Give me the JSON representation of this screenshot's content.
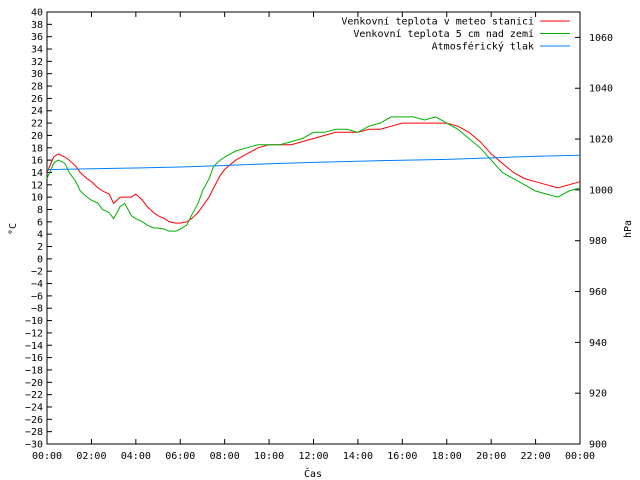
{
  "chart_data": {
    "type": "line",
    "title": "",
    "xlabel": "Čas",
    "ylabel": "°C",
    "y2label": "hPa",
    "x_ticks": [
      "00:00",
      "02:00",
      "04:00",
      "06:00",
      "08:00",
      "10:00",
      "12:00",
      "14:00",
      "16:00",
      "18:00",
      "20:00",
      "22:00",
      "00:00"
    ],
    "xlim": [
      0,
      24
    ],
    "ylim": [
      -30,
      40
    ],
    "y_ticks": [
      -30,
      -28,
      -26,
      -24,
      -22,
      -20,
      -18,
      -16,
      -14,
      -12,
      -10,
      -8,
      -6,
      -4,
      -2,
      0,
      2,
      4,
      6,
      8,
      10,
      12,
      14,
      16,
      18,
      20,
      22,
      24,
      26,
      28,
      30,
      32,
      34,
      36,
      38,
      40
    ],
    "y2lim": [
      900,
      1070
    ],
    "y2_ticks": [
      900,
      920,
      940,
      960,
      980,
      1000,
      1020,
      1040,
      1060
    ],
    "grid": false,
    "legend_position": "top-right",
    "series": [
      {
        "name": "Venkovní teplota v meteo stanici",
        "color": "#ff0000",
        "axis": "left",
        "x": [
          0,
          0.3,
          0.5,
          0.8,
          1.0,
          1.3,
          1.5,
          1.8,
          2.0,
          2.3,
          2.5,
          2.8,
          3.0,
          3.3,
          3.5,
          3.8,
          4.0,
          4.3,
          4.5,
          4.8,
          5.0,
          5.3,
          5.5,
          5.8,
          6.0,
          6.3,
          6.5,
          6.8,
          7.0,
          7.3,
          7.5,
          7.8,
          8.0,
          8.5,
          9.0,
          9.5,
          10.0,
          10.5,
          11.0,
          11.5,
          12.0,
          12.5,
          13.0,
          13.5,
          14.0,
          14.5,
          15.0,
          15.5,
          16.0,
          16.5,
          17.0,
          17.5,
          18.0,
          18.5,
          19.0,
          19.5,
          20.0,
          20.5,
          21.0,
          21.5,
          22.0,
          22.5,
          23.0,
          23.5,
          24.0
        ],
        "y": [
          14,
          16.5,
          17,
          16.5,
          16,
          15,
          14,
          13,
          12.5,
          11.5,
          11,
          10.5,
          9,
          10,
          10,
          10,
          10.5,
          9.5,
          8.5,
          7.5,
          7,
          6.5,
          6,
          5.8,
          5.8,
          6,
          6.5,
          7.5,
          8.5,
          10,
          11.5,
          13.5,
          14.5,
          16,
          17,
          18,
          18.5,
          18.5,
          18.5,
          19,
          19.5,
          20,
          20.5,
          20.5,
          20.5,
          21,
          21,
          21.5,
          22,
          22,
          22,
          22,
          22,
          21.5,
          20.5,
          19,
          17,
          15.5,
          14,
          13,
          12.5,
          12,
          11.5,
          12,
          12.5
        ]
      },
      {
        "name": "Venkovní teplota 5 cm nad zemí",
        "color": "#00b000",
        "axis": "left",
        "x": [
          0,
          0.3,
          0.5,
          0.8,
          1.0,
          1.3,
          1.5,
          1.8,
          2.0,
          2.3,
          2.5,
          2.8,
          3.0,
          3.3,
          3.5,
          3.8,
          4.0,
          4.3,
          4.5,
          4.8,
          5.0,
          5.3,
          5.5,
          5.8,
          6.0,
          6.3,
          6.5,
          6.8,
          7.0,
          7.3,
          7.5,
          7.8,
          8.0,
          8.5,
          9.0,
          9.5,
          10.0,
          10.5,
          11.0,
          11.5,
          12.0,
          12.5,
          13.0,
          13.5,
          14.0,
          14.5,
          15.0,
          15.5,
          16.0,
          16.5,
          17.0,
          17.5,
          18.0,
          18.5,
          19.0,
          19.5,
          20.0,
          20.5,
          21.0,
          21.5,
          22.0,
          22.5,
          23.0,
          23.5,
          24.0
        ],
        "y": [
          13,
          15.5,
          16,
          15.5,
          14,
          12.5,
          11,
          10,
          9.5,
          9,
          8,
          7.5,
          6.5,
          8.5,
          9,
          7,
          6.5,
          6,
          5.5,
          5,
          5,
          4.8,
          4.5,
          4.5,
          4.8,
          5.5,
          7,
          9,
          11,
          13,
          15,
          16,
          16.5,
          17.5,
          18,
          18.5,
          18.5,
          18.5,
          19,
          19.5,
          20.5,
          20.5,
          21,
          21,
          20.5,
          21.5,
          22,
          23,
          23,
          23,
          22.5,
          23,
          22,
          21,
          19.5,
          18,
          16,
          14,
          13,
          12,
          11,
          10.5,
          10,
          11,
          11.5
        ]
      },
      {
        "name": "Atmosférický tlak",
        "color": "#0080ff",
        "axis": "right",
        "x": [
          0,
          2,
          4,
          6,
          8,
          10,
          12,
          14,
          16,
          18,
          20,
          22,
          24
        ],
        "y": [
          1008,
          1008.3,
          1008.6,
          1009,
          1009.6,
          1010.3,
          1010.8,
          1011.3,
          1011.7,
          1012,
          1012.6,
          1013.2,
          1013.6
        ]
      }
    ]
  }
}
